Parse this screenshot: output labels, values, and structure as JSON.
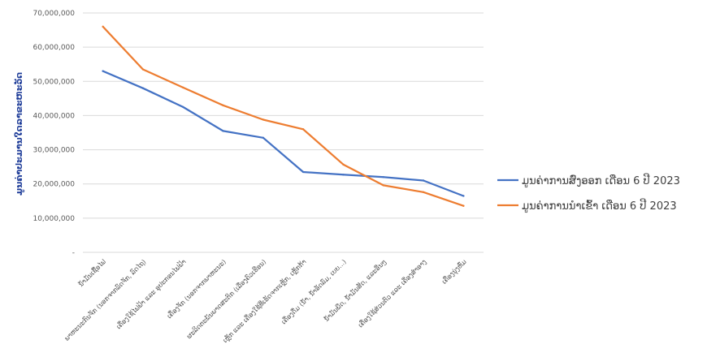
{
  "chart_data": {
    "type": "line",
    "title": "",
    "xlabel": "",
    "ylabel": "ມູນຄ່າປະມານໃດລາຂະຫະວັດ",
    "ylim": [
      0,
      70000000
    ],
    "yticks": [
      0,
      10000000,
      20000000,
      30000000,
      40000000,
      50000000,
      60000000,
      70000000
    ],
    "ytick_labels": [
      "-",
      "10,000,000",
      "20,000,000",
      "30,000,000",
      "40,000,000",
      "50,000,000",
      "60,000,000",
      "70,000,000"
    ],
    "grid": true,
    "legend_position": "right",
    "categories": [
      "ນໍ້າມັນເຊື້ອໄຟ",
      "ພາຫະນະກົນຈັກ (ນອກຈາກລົດຈັກ, ລົດໄຖ)",
      "ເຄື່ອງໃຊ້ໄຟຟ້າ ແລະ ອຸປະກອນໄຟຟ້າ",
      "ເຄື່ອງຈັກ (ນອກຈາກພາຫະນະ)",
      "ຜະລິດຕະພັນພາດສະຕິກ (ເລື່ອງຄົວເຮືອນ)",
      "ເຫຼັກ ແລະ ເຄື່ອງໃຊ້ທີ່ເຮັດຈາກເຫຼັກ, ເຫຼັກກ້າ",
      "ເຄື່ອງດື່ມ (ນໍ້າ, ນໍ້າອັດລົມ, ເບຍ...)",
      "ນໍ້າມັນພືດ, ນໍ້າມັນສັດ, ແລະອື່ນໆ",
      "ເຄື່ອງໃຊ້ສ່ວນຕົວ ແລະ ເຄື່ອງສຳອາງ",
      "ເຄື່ອງນຸ່ງຫົ່ມ"
    ],
    "series": [
      {
        "name": "ມູນຄ່າການສົ່ງອອກ ເດືອນ 6 ປີ 2023",
        "color": "#4472c4",
        "values": [
          53000000,
          48000000,
          42500000,
          35500000,
          33500000,
          23500000,
          22700000,
          22000000,
          21000000,
          16500000
        ]
      },
      {
        "name": "ມູນຄ່າການນຳເຂົ້າ ເດືອນ 6 ປີ 2023",
        "color": "#ed7d31",
        "values": [
          66000000,
          53500000,
          48200000,
          43000000,
          38800000,
          36000000,
          25700000,
          19600000,
          17600000,
          13600000
        ]
      }
    ]
  }
}
